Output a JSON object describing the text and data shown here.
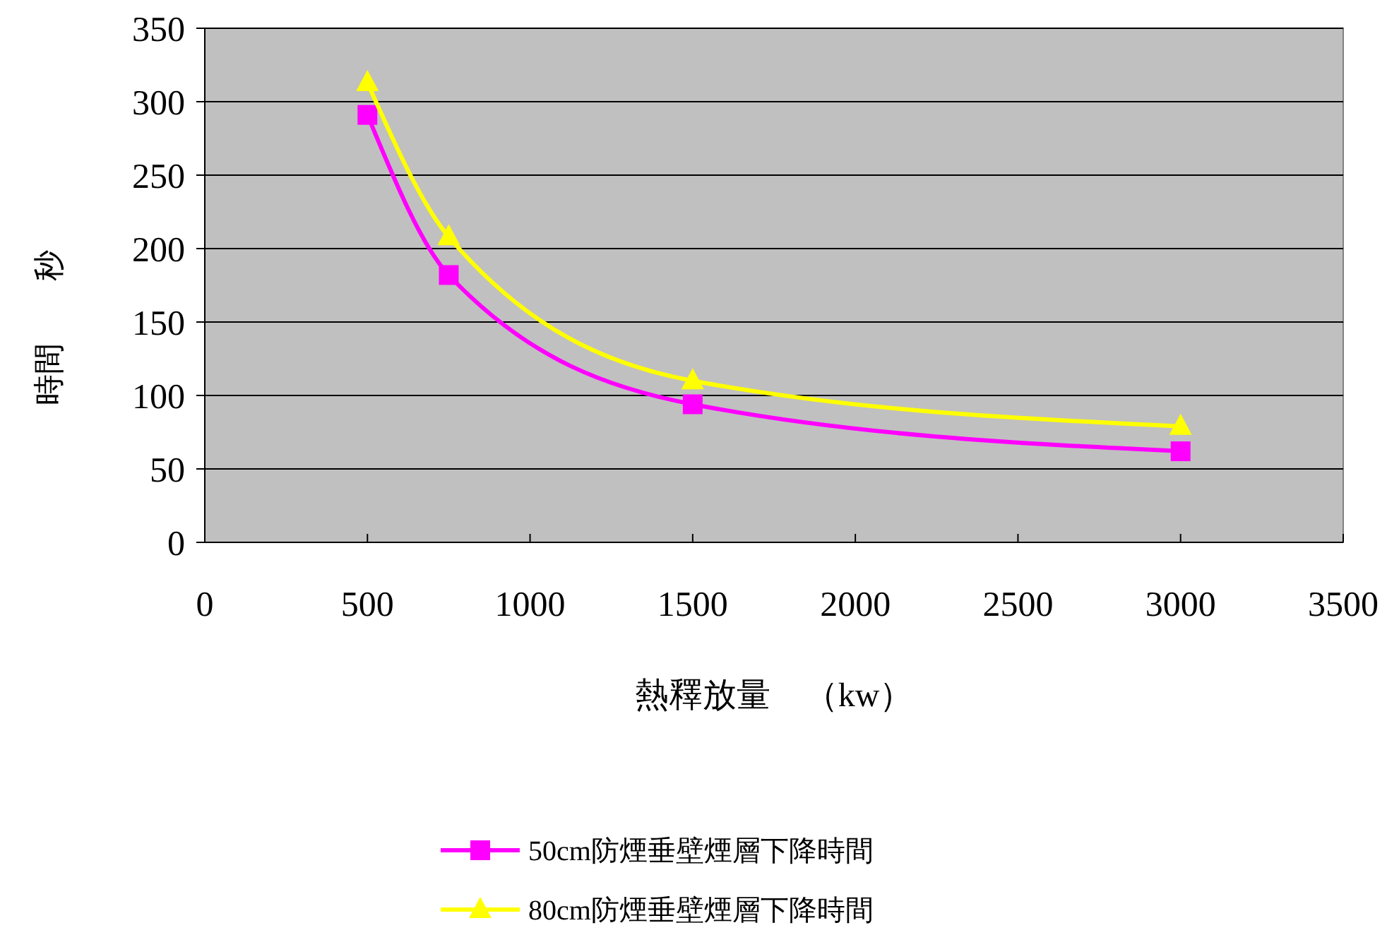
{
  "chart_data": {
    "type": "line",
    "xlabel": "熱釋放量　（kw）",
    "ylabel": "時間　　秒",
    "xlim": [
      0,
      3500
    ],
    "xticks": [
      0,
      500,
      1000,
      1500,
      2000,
      2500,
      3000,
      3500
    ],
    "ylim": [
      0,
      350
    ],
    "yticks": [
      0,
      50,
      100,
      150,
      200,
      250,
      300,
      350
    ],
    "grid": "y",
    "legend": "bottom",
    "series": [
      {
        "name": "50cm防煙垂壁煙層下降時間",
        "color": "#ff00ff",
        "marker": "square",
        "x": [
          500,
          750,
          1500,
          3000
        ],
        "values": [
          291,
          182,
          94,
          62
        ]
      },
      {
        "name": "80cm防煙垂壁煙層下降時間",
        "color": "#ffff00",
        "marker": "triangle",
        "x": [
          500,
          750,
          1500,
          3000
        ],
        "values": [
          313,
          208,
          110,
          79
        ]
      }
    ]
  }
}
